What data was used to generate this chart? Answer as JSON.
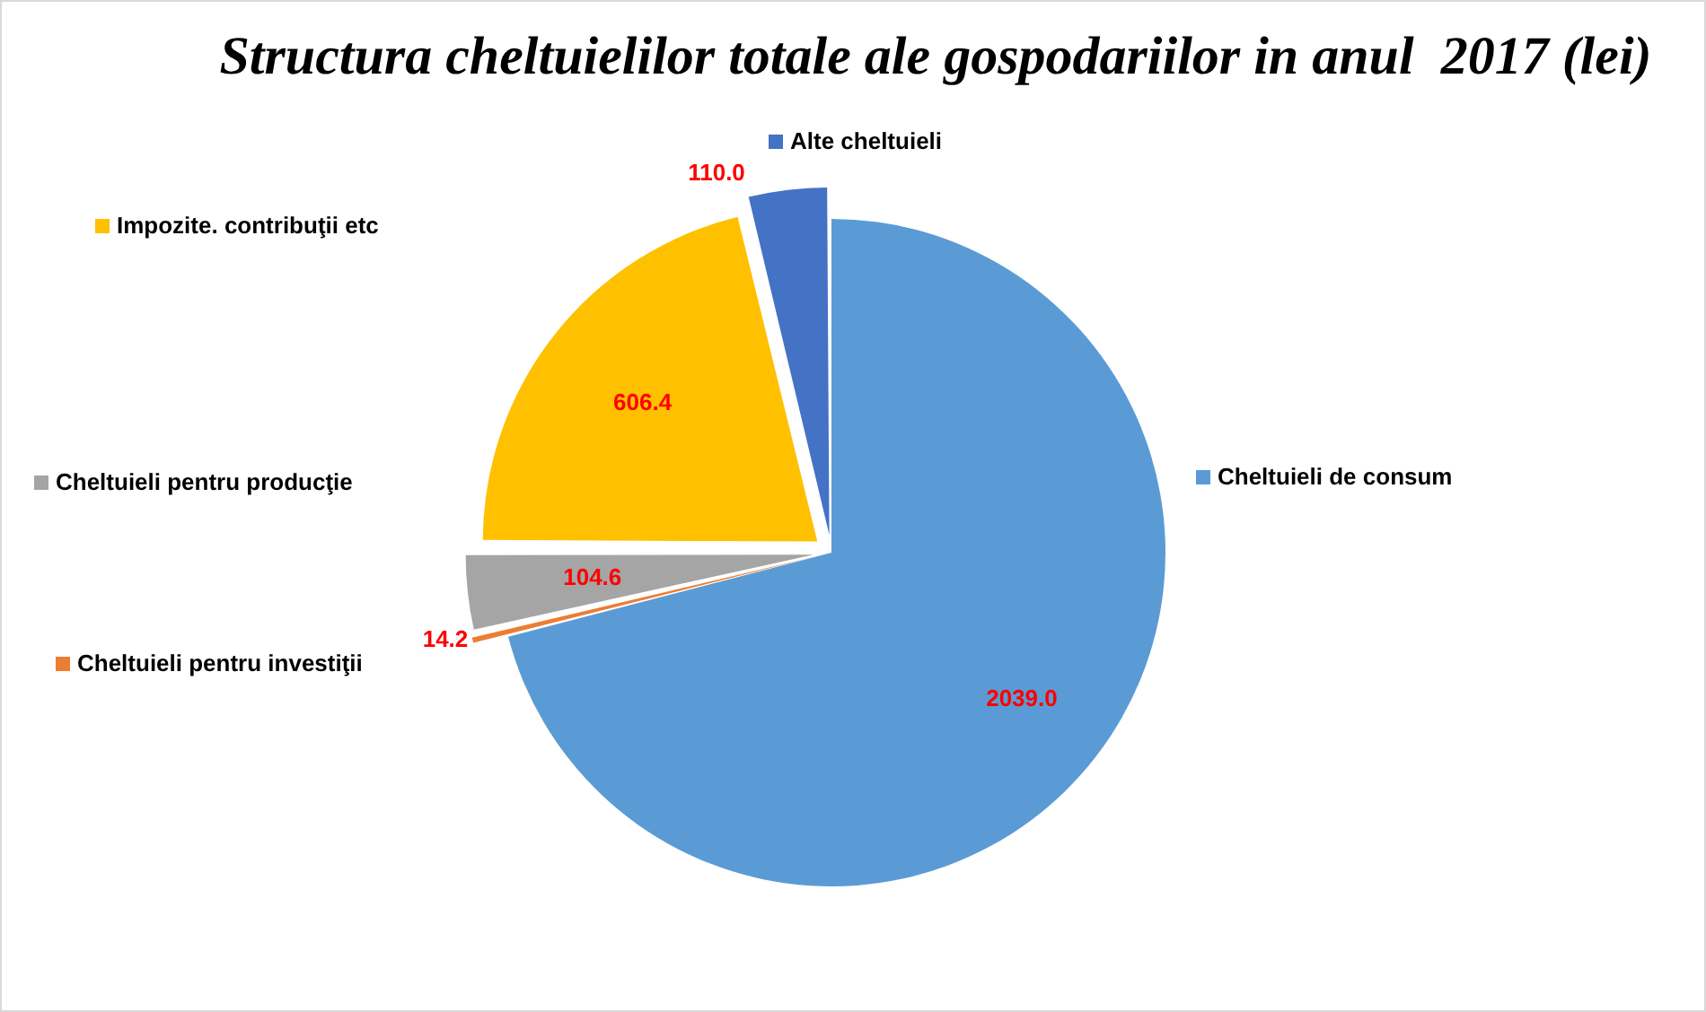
{
  "chart_data": {
    "type": "pie",
    "title": "Structura cheltuielilor totale ale gospodariilor in anul  2017 (lei)",
    "categories": [
      "Cheltuieli de consum",
      "Cheltuieli pentru investiţii",
      "Cheltuieli pentru producţie",
      "Impozite. contribuţii etc",
      "Alte cheltuieli"
    ],
    "values": [
      2039.0,
      14.2,
      104.6,
      606.4,
      110.0
    ],
    "value_labels": [
      "2039.0",
      "14.2",
      "104.6",
      "606.4",
      "110.0"
    ],
    "colors": [
      "#5b9bd5",
      "#ed7d31",
      "#a5a5a5",
      "#ffc000",
      "#4472c4"
    ],
    "legend": "left"
  }
}
